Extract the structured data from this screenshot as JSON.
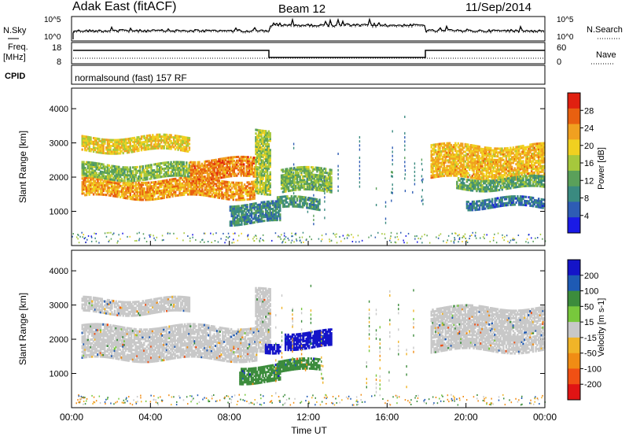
{
  "header": {
    "title": "Adak East (fitACF)",
    "beam": "Beam 12",
    "date": "11/Sep/2014"
  },
  "panels": {
    "sky": {
      "left_label": "N.Sky",
      "left_ticks": [
        "10^5",
        "10^0"
      ],
      "right_label": "N.Search",
      "right_ticks": [
        "10^5",
        "10^0"
      ]
    },
    "freq": {
      "left_label_1": "Freq.",
      "left_label_2": "[MHz]",
      "left_ticks": [
        "18",
        "8"
      ],
      "right_label": "Nave",
      "right_ticks": [
        "60",
        "0"
      ]
    },
    "cpid": {
      "left_label": "CPID",
      "text": "normalsound (fast) 157 RF"
    }
  },
  "chart_data": [
    {
      "type": "heatmap",
      "title": "",
      "xlabel": "",
      "ylabel": "Slant Range [km]",
      "xlim": [
        "00:00",
        "24:00"
      ],
      "ylim": [
        0,
        4600
      ],
      "y_ticks": [
        1000,
        2000,
        3000,
        4000
      ],
      "colorbar": {
        "label": "Power [dB]",
        "ticks": [
          4,
          8,
          12,
          16,
          20,
          24,
          28
        ],
        "range": [
          0,
          32
        ],
        "colors": [
          "#1a1ae6",
          "#2e5cb4",
          "#3a8a80",
          "#5aa05a",
          "#a6c83c",
          "#f0d020",
          "#f0a020",
          "#e86010",
          "#e02010"
        ]
      },
      "regions": [
        {
          "t0": 0.5,
          "t1": 9.3,
          "r0": 1450,
          "r1": 2000,
          "level": 24
        },
        {
          "t0": 0.5,
          "t1": 6.0,
          "r0": 2000,
          "r1": 2450,
          "level": 14
        },
        {
          "t0": 0.5,
          "t1": 6.0,
          "r0": 2800,
          "r1": 3250,
          "level": 20
        },
        {
          "t0": 6.0,
          "t1": 9.4,
          "r0": 2000,
          "r1": 2600,
          "level": 26
        },
        {
          "t0": 9.3,
          "t1": 10.1,
          "r0": 1600,
          "r1": 3500,
          "level": 16
        },
        {
          "t0": 10.6,
          "t1": 13.2,
          "r0": 1600,
          "r1": 2300,
          "level": 14
        },
        {
          "t0": 10.4,
          "t1": 12.6,
          "r0": 1100,
          "r1": 1450,
          "level": 10
        },
        {
          "t0": 8.0,
          "t1": 10.6,
          "r0": 700,
          "r1": 1300,
          "level": 8
        },
        {
          "t0": 18.2,
          "t1": 24.0,
          "r0": 2000,
          "r1": 3000,
          "level": 22
        },
        {
          "t0": 19.5,
          "t1": 24.0,
          "r0": 1700,
          "r1": 2050,
          "level": 12
        },
        {
          "t0": 20.0,
          "t1": 24.0,
          "r0": 1150,
          "r1": 1450,
          "level": 6
        }
      ],
      "xticks": []
    },
    {
      "type": "heatmap",
      "title": "",
      "xlabel": "Time UT",
      "ylabel": "Slant Range [km]",
      "xlim": [
        "00:00",
        "24:00"
      ],
      "ylim": [
        0,
        4600
      ],
      "y_ticks": [
        1000,
        2000,
        3000,
        4000
      ],
      "x_ticks": [
        "00:00",
        "04:00",
        "08:00",
        "12:00",
        "16:00",
        "20:00",
        "00:00"
      ],
      "colorbar": {
        "label": "Velocity [m s-1]",
        "ticks": [
          200,
          100,
          50,
          15,
          -15,
          -50,
          -100,
          -200
        ],
        "colors": [
          "#1414c8",
          "#1e5ab4",
          "#3c8c3c",
          "#78c83c",
          "#c8c8c8",
          "#f0b428",
          "#f08c14",
          "#f05014",
          "#e01414"
        ]
      },
      "regions": [
        {
          "t0": 0.5,
          "t1": 9.4,
          "r0": 1450,
          "r1": 2450,
          "v": 0
        },
        {
          "t0": 0.5,
          "t1": 6.0,
          "r0": 2800,
          "r1": 3250,
          "v": 0
        },
        {
          "t0": 9.3,
          "t1": 10.1,
          "r0": 1600,
          "r1": 3500,
          "v": 0
        },
        {
          "t0": 10.8,
          "t1": 13.2,
          "r0": 1800,
          "r1": 2300,
          "v": 220
        },
        {
          "t0": 9.8,
          "t1": 10.6,
          "r0": 1700,
          "r1": 2000,
          "v": 210
        },
        {
          "t0": 10.4,
          "t1": 12.6,
          "r0": 1100,
          "r1": 1450,
          "v": 40
        },
        {
          "t0": 8.5,
          "t1": 10.6,
          "r0": 800,
          "r1": 1300,
          "v": 60
        },
        {
          "t0": 18.2,
          "t1": 24.0,
          "r0": 1700,
          "r1": 3000,
          "v": 0
        }
      ]
    }
  ]
}
